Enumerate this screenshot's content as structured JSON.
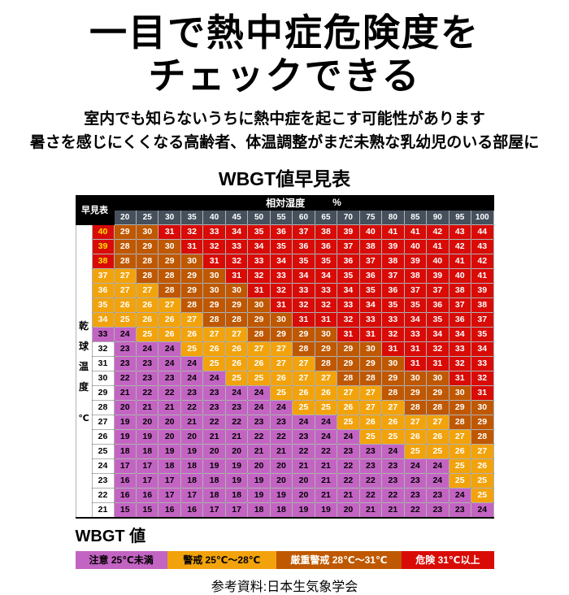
{
  "page": {
    "title_line1": "一目で熱中症危険度を",
    "title_line2": "チェックできる",
    "subtitle_line1": "室内でも知らないうちに熱中症を起こす可能性があります",
    "subtitle_line2": "暑さを感じにくくなる高齢者、体温調整がまだ未熟な乳幼児のいる部屋に",
    "source": "参考資料:日本生気象学会"
  },
  "chart_data": {
    "type": "heatmap",
    "title": "WBGT値早見表",
    "corner_label": "早見表",
    "x_axis_label": "相対湿度",
    "x_axis_unit": "%",
    "y_axis_label_chars": [
      "乾",
      "球",
      "温",
      "度"
    ],
    "y_axis_unit": "℃",
    "humidity_percent": [
      20,
      25,
      30,
      35,
      40,
      45,
      50,
      55,
      60,
      65,
      70,
      75,
      80,
      85,
      90,
      95,
      100
    ],
    "footer_label": "WBGT 値",
    "thresholds": {
      "warning": 25,
      "severe": 28,
      "danger": 31
    },
    "colors": {
      "caution": "#c364c3",
      "warning": "#f2a30c",
      "severe": "#bf5800",
      "danger": "#d90b06",
      "header_bg": "#000000",
      "humidity_bg": "#45505c",
      "temp_hot_text": "#ffe400"
    },
    "legend": [
      {
        "label": "注意 25℃未満",
        "key": "caution",
        "text_color": "#000000",
        "flex": 22
      },
      {
        "label": "警戒 25℃～28℃",
        "key": "warning",
        "text_color": "#000000",
        "flex": 26
      },
      {
        "label": "厳重警戒 28℃～31℃",
        "key": "severe",
        "text_color": "#ffffff",
        "flex": 30
      },
      {
        "label": "危険 31℃以上",
        "key": "danger",
        "text_color": "#ffffff",
        "flex": 22
      }
    ],
    "rows": [
      {
        "temp": 40,
        "label_style": "red",
        "values": [
          29,
          30,
          31,
          32,
          33,
          34,
          35,
          36,
          37,
          38,
          39,
          40,
          41,
          41,
          42,
          43,
          44
        ]
      },
      {
        "temp": 39,
        "label_style": "red",
        "values": [
          28,
          29,
          30,
          31,
          32,
          33,
          34,
          35,
          36,
          36,
          37,
          38,
          39,
          40,
          41,
          42,
          43
        ]
      },
      {
        "temp": 38,
        "label_style": "red",
        "values": [
          28,
          28,
          29,
          30,
          31,
          32,
          33,
          34,
          35,
          35,
          36,
          37,
          38,
          39,
          40,
          41,
          42
        ]
      },
      {
        "temp": 37,
        "label_style": "orange",
        "values": [
          27,
          28,
          28,
          29,
          30,
          31,
          32,
          33,
          34,
          34,
          35,
          36,
          37,
          38,
          39,
          40,
          41
        ]
      },
      {
        "temp": 36,
        "label_style": "orange",
        "values": [
          27,
          27,
          28,
          29,
          30,
          30,
          31,
          32,
          33,
          33,
          34,
          35,
          36,
          37,
          37,
          38,
          39
        ]
      },
      {
        "temp": 35,
        "label_style": "orange",
        "values": [
          26,
          26,
          27,
          28,
          29,
          29,
          30,
          31,
          32,
          32,
          33,
          34,
          35,
          35,
          36,
          37,
          38
        ]
      },
      {
        "temp": 34,
        "label_style": "orange",
        "values": [
          25,
          26,
          26,
          27,
          28,
          28,
          29,
          30,
          31,
          31,
          32,
          33,
          33,
          34,
          35,
          36,
          37
        ]
      },
      {
        "temp": 33,
        "label_style": "purple",
        "values": [
          24,
          25,
          26,
          26,
          27,
          27,
          28,
          29,
          29,
          30,
          31,
          31,
          32,
          33,
          34,
          34,
          35
        ]
      },
      {
        "temp": 32,
        "label_style": "plain",
        "values": [
          23,
          24,
          24,
          25,
          26,
          26,
          27,
          27,
          28,
          29,
          29,
          30,
          31,
          31,
          32,
          33,
          34
        ]
      },
      {
        "temp": 31,
        "label_style": "plain",
        "values": [
          23,
          23,
          24,
          24,
          25,
          26,
          26,
          27,
          27,
          28,
          29,
          29,
          30,
          31,
          31,
          32,
          33
        ]
      },
      {
        "temp": 30,
        "label_style": "plain",
        "values": [
          22,
          23,
          23,
          24,
          24,
          25,
          25,
          26,
          27,
          27,
          28,
          28,
          29,
          30,
          30,
          31,
          32
        ]
      },
      {
        "temp": 29,
        "label_style": "plain",
        "values": [
          21,
          22,
          22,
          23,
          23,
          24,
          24,
          25,
          26,
          26,
          27,
          27,
          28,
          29,
          29,
          30,
          31
        ]
      },
      {
        "temp": 28,
        "label_style": "plain",
        "values": [
          20,
          21,
          21,
          22,
          23,
          23,
          24,
          24,
          25,
          25,
          26,
          27,
          27,
          28,
          28,
          29,
          30
        ]
      },
      {
        "temp": 27,
        "label_style": "plain",
        "values": [
          19,
          20,
          20,
          21,
          22,
          22,
          23,
          23,
          24,
          24,
          25,
          26,
          26,
          27,
          27,
          28,
          29
        ]
      },
      {
        "temp": 26,
        "label_style": "plain",
        "values": [
          19,
          19,
          20,
          20,
          21,
          21,
          22,
          22,
          23,
          24,
          24,
          25,
          25,
          26,
          26,
          27,
          28
        ]
      },
      {
        "temp": 25,
        "label_style": "plain",
        "values": [
          18,
          18,
          19,
          19,
          20,
          20,
          21,
          21,
          22,
          22,
          23,
          23,
          24,
          25,
          25,
          26,
          27
        ]
      },
      {
        "temp": 24,
        "label_style": "plain",
        "values": [
          17,
          17,
          18,
          18,
          19,
          19,
          20,
          20,
          21,
          21,
          22,
          23,
          23,
          24,
          24,
          25,
          26
        ]
      },
      {
        "temp": 23,
        "label_style": "plain",
        "values": [
          16,
          17,
          17,
          18,
          18,
          19,
          19,
          20,
          20,
          21,
          22,
          22,
          23,
          23,
          24,
          25,
          25
        ]
      },
      {
        "temp": 22,
        "label_style": "plain",
        "values": [
          16,
          16,
          17,
          17,
          18,
          18,
          19,
          19,
          20,
          21,
          21,
          22,
          22,
          23,
          23,
          24,
          25
        ]
      },
      {
        "temp": 21,
        "label_style": "plain",
        "values": [
          15,
          15,
          16,
          16,
          17,
          17,
          18,
          18,
          19,
          19,
          20,
          21,
          21,
          22,
          23,
          23,
          24
        ]
      }
    ]
  }
}
